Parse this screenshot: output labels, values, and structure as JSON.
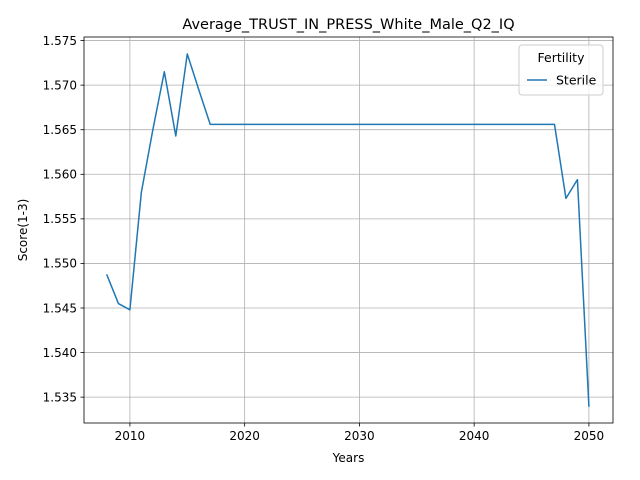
{
  "chart_data": {
    "type": "line",
    "title": "Average_TRUST_IN_PRESS_White_Male_Q2_IQ",
    "xlabel": "Years",
    "ylabel": "Score(1-3)",
    "xlim": [
      2006,
      2052.1
    ],
    "ylim": [
      1.5321,
      1.5754
    ],
    "xticks": [
      2010,
      2020,
      2030,
      2040,
      2050
    ],
    "xtick_labels": [
      "2010",
      "2020",
      "2030",
      "2040",
      "2050"
    ],
    "yticks": [
      1.535,
      1.54,
      1.545,
      1.55,
      1.555,
      1.56,
      1.565,
      1.57,
      1.575
    ],
    "ytick_labels": [
      "1.535",
      "1.540",
      "1.545",
      "1.550",
      "1.555",
      "1.560",
      "1.565",
      "1.570",
      "1.575"
    ],
    "grid": true,
    "legend": {
      "title": "Fertility",
      "placement": "top-right"
    },
    "series": [
      {
        "name": "Sterile",
        "color": "#1f77b4",
        "x": [
          2008,
          2009,
          2010,
          2011,
          2012,
          2013,
          2014,
          2015,
          2016,
          2017,
          2018,
          2019,
          2020,
          2021,
          2022,
          2023,
          2024,
          2025,
          2026,
          2027,
          2028,
          2029,
          2030,
          2031,
          2032,
          2033,
          2034,
          2035,
          2036,
          2037,
          2038,
          2039,
          2040,
          2041,
          2042,
          2043,
          2044,
          2045,
          2046,
          2047,
          2048,
          2049,
          2050
        ],
        "y": [
          1.5487,
          1.5455,
          1.5448,
          1.558,
          1.565,
          1.5715,
          1.5643,
          1.5735,
          1.5695,
          1.5656,
          1.5656,
          1.5656,
          1.5656,
          1.5656,
          1.5656,
          1.5656,
          1.5656,
          1.5656,
          1.5656,
          1.5656,
          1.5656,
          1.5656,
          1.5656,
          1.5656,
          1.5656,
          1.5656,
          1.5656,
          1.5656,
          1.5656,
          1.5656,
          1.5656,
          1.5656,
          1.5656,
          1.5656,
          1.5656,
          1.5656,
          1.5656,
          1.5656,
          1.5656,
          1.5656,
          1.5573,
          1.5594,
          1.534
        ]
      }
    ]
  }
}
